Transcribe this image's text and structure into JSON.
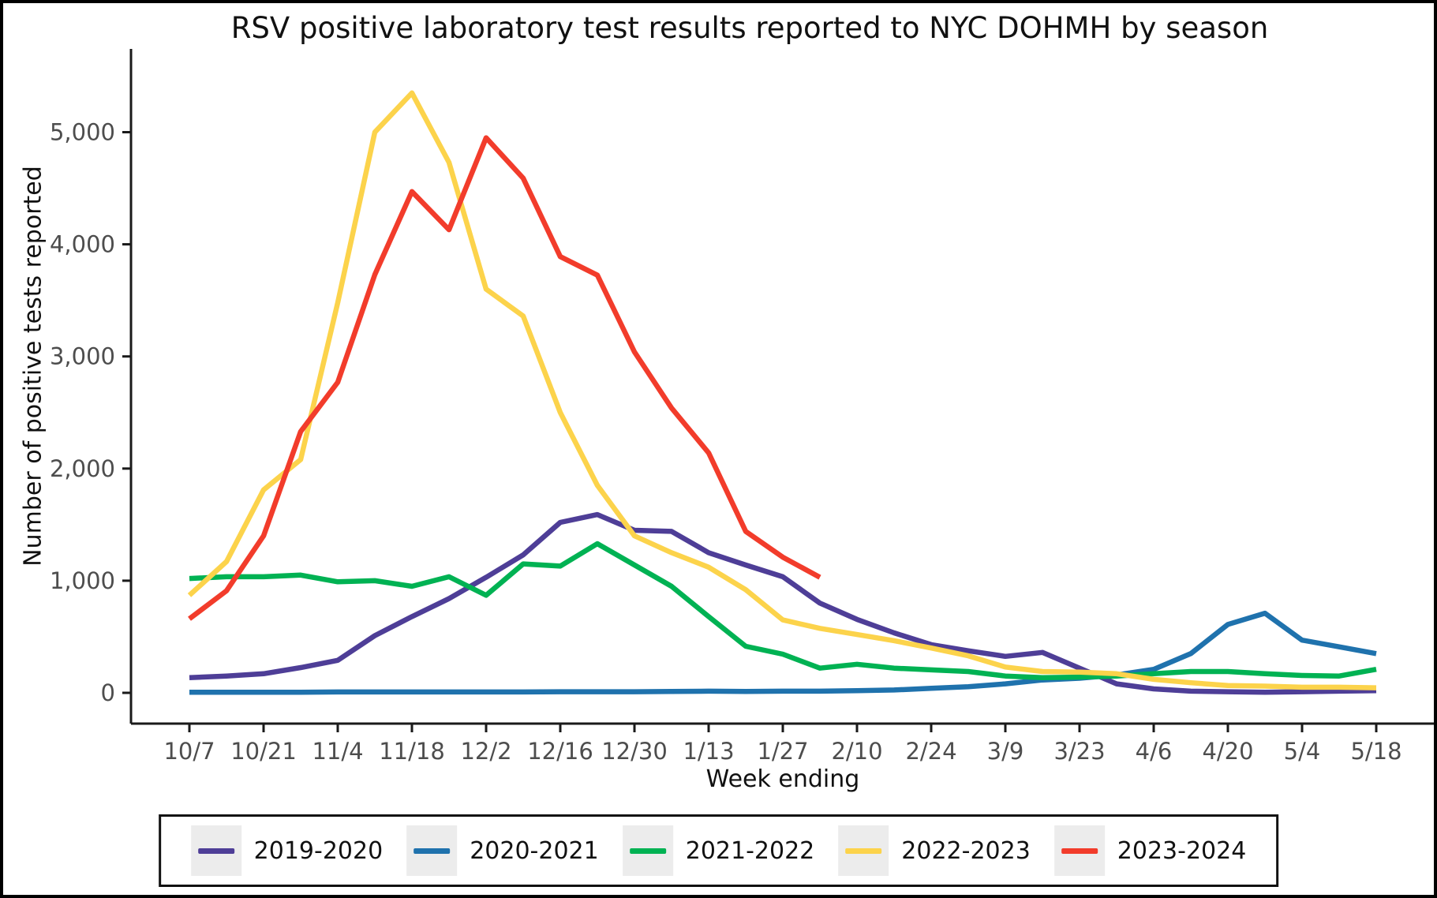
{
  "chart_data": {
    "type": "line",
    "title": "RSV positive laboratory test results reported to NYC DOHMH by season",
    "xlabel": "Week ending",
    "ylabel": "Number of positive tests reported",
    "grid": false,
    "legend_position": "bottom",
    "ylim": [
      0,
      5700
    ],
    "y_ticks": [
      {
        "value": 0,
        "label": "0"
      },
      {
        "value": 1000,
        "label": "1,000"
      },
      {
        "value": 2000,
        "label": "2,000"
      },
      {
        "value": 3000,
        "label": "3,000"
      },
      {
        "value": 4000,
        "label": "4,000"
      },
      {
        "value": 5000,
        "label": "5,000"
      }
    ],
    "x_tick_labels": [
      "10/7",
      "10/21",
      "11/4",
      "11/18",
      "12/2",
      "12/16",
      "12/30",
      "1/13",
      "1/27",
      "2/10",
      "2/24",
      "3/9",
      "3/23",
      "4/6",
      "4/20",
      "5/4",
      "5/18"
    ],
    "categories": [
      "10/7",
      "10/14",
      "10/21",
      "10/28",
      "11/4",
      "11/11",
      "11/18",
      "11/25",
      "12/2",
      "12/9",
      "12/16",
      "12/23",
      "12/30",
      "1/6",
      "1/13",
      "1/20",
      "1/27",
      "2/3",
      "2/10",
      "2/17",
      "2/24",
      "3/2",
      "3/9",
      "3/16",
      "3/23",
      "3/30",
      "4/6",
      "4/13",
      "4/20",
      "4/27",
      "5/4",
      "5/11",
      "5/18"
    ],
    "series": [
      {
        "name": "2019-2020",
        "color": "#4e3e97",
        "values": [
          135,
          150,
          170,
          225,
          290,
          510,
          680,
          840,
          1030,
          1230,
          1520,
          1590,
          1450,
          1440,
          1250,
          1140,
          1035,
          800,
          655,
          535,
          430,
          375,
          325,
          360,
          220,
          80,
          35,
          15,
          10,
          5,
          10,
          15,
          20
        ]
      },
      {
        "name": "2020-2021",
        "color": "#1f72ad",
        "values": [
          5,
          5,
          5,
          5,
          8,
          8,
          8,
          8,
          8,
          8,
          10,
          10,
          10,
          12,
          15,
          12,
          15,
          15,
          20,
          25,
          40,
          55,
          80,
          115,
          130,
          160,
          210,
          350,
          610,
          710,
          470,
          410,
          350
        ]
      },
      {
        "name": "2021-2022",
        "color": "#00b253",
        "values": [
          1020,
          1035,
          1035,
          1050,
          990,
          1000,
          950,
          1035,
          870,
          1150,
          1130,
          1330,
          1140,
          950,
          680,
          415,
          345,
          220,
          255,
          220,
          205,
          190,
          150,
          135,
          140,
          150,
          170,
          190,
          190,
          170,
          155,
          150,
          210
        ]
      },
      {
        "name": "2022-2023",
        "color": "#fcd34b",
        "values": [
          870,
          1170,
          1810,
          2080,
          3480,
          5000,
          5350,
          4730,
          3600,
          3360,
          2500,
          1850,
          1400,
          1250,
          1120,
          920,
          650,
          575,
          520,
          465,
          400,
          330,
          230,
          190,
          185,
          170,
          120,
          90,
          65,
          60,
          50,
          50,
          45
        ]
      },
      {
        "name": "2023-2024",
        "color": "#f23c2b",
        "values": [
          660,
          910,
          1400,
          2330,
          2770,
          3730,
          4470,
          4130,
          4950,
          4590,
          3890,
          3725,
          3040,
          2540,
          2140,
          1440,
          1210,
          1030
        ]
      }
    ]
  }
}
